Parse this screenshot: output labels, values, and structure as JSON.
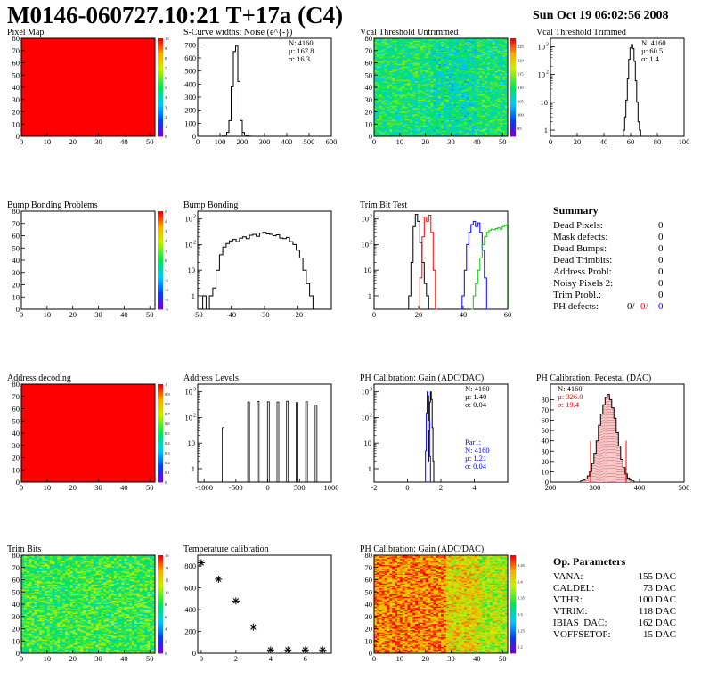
{
  "header": {
    "title": "M0146-060727.10:21 T+17a (C4)",
    "date": "Sun Oct 19 06:02:56 2008"
  },
  "chart_data": [
    {
      "id": "pixel-map",
      "type": "heatmap",
      "title": "Pixel Map",
      "fill": "uniform-red",
      "xlim": [
        0,
        52
      ],
      "ylim": [
        0,
        80
      ],
      "xticks": [
        "0",
        "10",
        "20",
        "30",
        "40",
        "50"
      ],
      "yticks": [
        "0",
        "10",
        "20",
        "30",
        "40",
        "50",
        "60",
        "70",
        "80"
      ],
      "zticks": [
        "0",
        "1",
        "2",
        "3",
        "4",
        "5",
        "6",
        "7",
        "8",
        "9",
        "10"
      ],
      "zlim": [
        0,
        10
      ]
    },
    {
      "id": "noise",
      "type": "line",
      "title": "S-Curve widths: Noise (e^{-})",
      "xlim": [
        0,
        600
      ],
      "ylim": [
        0,
        750
      ],
      "xticks": [
        "0",
        "100",
        "200",
        "300",
        "400",
        "500",
        "600"
      ],
      "yticks": [
        "0",
        "100",
        "200",
        "300",
        "400",
        "500",
        "600",
        "700"
      ],
      "stats": [
        "N: 4160",
        "µ: 167.8",
        "σ: 16.3"
      ],
      "x": [
        115,
        125,
        135,
        145,
        155,
        165,
        175,
        185,
        195,
        205,
        215,
        225,
        235
      ],
      "values": [
        2,
        8,
        30,
        120,
        380,
        650,
        690,
        420,
        120,
        30,
        8,
        3,
        1
      ]
    },
    {
      "id": "vcal-untrimmed",
      "type": "heatmap",
      "title": "Vcal Threshold Untrimmed",
      "fill": "noise-blue-green",
      "xlim": [
        0,
        52
      ],
      "ylim": [
        0,
        80
      ],
      "xticks": [
        "0",
        "10",
        "20",
        "30",
        "40",
        "50"
      ],
      "yticks": [
        "0",
        "10",
        "20",
        "30",
        "40",
        "50",
        "60",
        "70",
        "80"
      ],
      "zticks": [
        "95",
        "100",
        "105",
        "110",
        "115",
        "120",
        "125"
      ],
      "zlim": [
        92,
        128
      ]
    },
    {
      "id": "vcal-trimmed",
      "type": "line",
      "title": "Vcal Threshold Trimmed",
      "log": true,
      "xlim": [
        0,
        100
      ],
      "ylim": [
        0.6,
        2000
      ],
      "xticks": [
        "0",
        "20",
        "40",
        "60",
        "80",
        "100"
      ],
      "yticks": [
        "1",
        "10",
        "10",
        "10"
      ],
      "ysup": [
        "",
        "",
        "2",
        "3"
      ],
      "stats": [
        "N: 4160",
        "µ: 60.5",
        "σ: 1.4"
      ],
      "x": [
        55,
        56,
        57,
        58,
        59,
        60,
        61,
        62,
        63,
        64,
        65,
        66,
        67
      ],
      "values": [
        1,
        3,
        12,
        70,
        350,
        900,
        1200,
        850,
        300,
        60,
        10,
        2,
        1
      ]
    },
    {
      "id": "bump-problems",
      "type": "heatmap",
      "title": "Bump Bonding Problems",
      "fill": "empty",
      "xlim": [
        0,
        52
      ],
      "ylim": [
        0,
        80
      ],
      "xticks": [
        "0",
        "10",
        "20",
        "30",
        "40",
        "50"
      ],
      "yticks": [
        "0",
        "10",
        "20",
        "30",
        "40",
        "50",
        "60",
        "70",
        "80"
      ],
      "zticks": [
        "-5",
        "-4",
        "-3",
        "-2",
        "-1",
        "0",
        "1",
        "2",
        "3",
        "4",
        "5"
      ],
      "zlim": [
        -5,
        5
      ]
    },
    {
      "id": "bump-bonding",
      "type": "line",
      "title": "Bump Bonding",
      "log": true,
      "xlim": [
        -50,
        -10
      ],
      "ylim": [
        0.3,
        2000
      ],
      "xticks": [
        "-50",
        "-40",
        "-30",
        "-20"
      ],
      "yticks": [
        "1",
        "10",
        "10",
        "10"
      ],
      "ysup": [
        "",
        "",
        "2",
        "3"
      ],
      "x": [
        -48,
        -47,
        -46,
        -45,
        -44,
        -43,
        -42,
        -41,
        -40,
        -39,
        -38,
        -37,
        -36,
        -35,
        -34,
        -33,
        -32,
        -31,
        -30,
        -29,
        -28,
        -27,
        -26,
        -25,
        -24,
        -23,
        -22,
        -21,
        -20,
        -19,
        -18,
        -17,
        -16
      ],
      "values": [
        1,
        0,
        1,
        2,
        10,
        40,
        80,
        110,
        140,
        160,
        130,
        180,
        200,
        170,
        230,
        250,
        210,
        280,
        300,
        260,
        250,
        220,
        240,
        180,
        170,
        190,
        130,
        100,
        60,
        30,
        10,
        3,
        1
      ]
    },
    {
      "id": "trim-bit-test",
      "type": "line",
      "title": "Trim Bit Test",
      "log": true,
      "xlim": [
        0,
        60
      ],
      "ylim": [
        0.3,
        2000
      ],
      "xticks": [
        "0",
        "20",
        "40",
        "60"
      ],
      "yticks": [
        "1",
        "10",
        "10",
        "10"
      ],
      "ysup": [
        "",
        "",
        "2",
        "3"
      ],
      "series": [
        {
          "color": "#000000",
          "x": [
            15,
            16,
            17,
            18,
            19,
            20,
            21,
            22,
            23,
            24,
            25
          ],
          "values": [
            0.3,
            1,
            20,
            500,
            1500,
            800,
            120,
            20,
            3,
            1,
            0.3
          ]
        },
        {
          "color": "#ff0000",
          "x": [
            20,
            21,
            22,
            23,
            24,
            25,
            26,
            27,
            28
          ],
          "values": [
            0.3,
            5,
            200,
            1200,
            800,
            1400,
            300,
            10,
            0.3
          ]
        },
        {
          "color": "#0000ff",
          "x": [
            39,
            40,
            41,
            42,
            43,
            44,
            45,
            46,
            47,
            48,
            49,
            50,
            51
          ],
          "values": [
            0.3,
            1,
            10,
            100,
            300,
            600,
            800,
            500,
            700,
            300,
            60,
            5,
            0.3
          ]
        },
        {
          "color": "#00cc00",
          "x": [
            44,
            45,
            46,
            47,
            48,
            49,
            50,
            51,
            52,
            53,
            54,
            55,
            56,
            57,
            58,
            59,
            60
          ],
          "values": [
            0.3,
            1,
            3,
            10,
            30,
            100,
            200,
            300,
            350,
            400,
            380,
            420,
            450,
            400,
            500,
            550,
            600
          ]
        }
      ]
    },
    {
      "id": "address-decoding",
      "type": "heatmap",
      "title": "Address decoding",
      "fill": "uniform-red",
      "xlim": [
        0,
        52
      ],
      "ylim": [
        0,
        80
      ],
      "xticks": [
        "0",
        "10",
        "20",
        "30",
        "40",
        "50"
      ],
      "yticks": [
        "0",
        "10",
        "20",
        "30",
        "40",
        "50",
        "60",
        "70",
        "80"
      ],
      "zticks": [
        "0",
        "0.1",
        "0.2",
        "0.3",
        "0.4",
        "0.5",
        "0.6",
        "0.7",
        "0.8",
        "0.9",
        "1"
      ],
      "zlim": [
        0,
        1
      ]
    },
    {
      "id": "address-levels",
      "type": "bar",
      "title": "Address Levels",
      "log": true,
      "xlim": [
        -1100,
        1000
      ],
      "ylim": [
        0.3,
        2000
      ],
      "xticks": [
        "-1000",
        "-500",
        "0",
        "500",
        "1000"
      ],
      "yticks": [
        "1",
        "10",
        "10",
        "10"
      ],
      "ysup": [
        "",
        "",
        "2",
        "3"
      ],
      "x": [
        -700,
        -300,
        -150,
        10,
        160,
        310,
        460,
        610,
        760
      ],
      "values": [
        40,
        400,
        420,
        410,
        400,
        430,
        380,
        410,
        300
      ]
    },
    {
      "id": "ph-gain",
      "type": "line",
      "title": "PH Calibration: Gain (ADC/DAC)",
      "log": true,
      "xlim": [
        -2,
        6
      ],
      "ylim": [
        0.3,
        2000
      ],
      "xticks": [
        "-2",
        "0",
        "2",
        "4"
      ],
      "yticks": [
        "1",
        "10",
        "10",
        "10"
      ],
      "ysup": [
        "",
        "",
        "2",
        "3"
      ],
      "stats": [
        "N: 4160",
        "µ: 1.40",
        "σ: 0.04"
      ],
      "stats2": [
        "Par1:",
        "N: 4160",
        "µ: 1.21",
        "σ: 0.04"
      ],
      "series": [
        {
          "color": "#000000",
          "x": [
            1.2,
            1.25,
            1.3,
            1.35,
            1.4,
            1.45,
            1.5,
            1.55,
            1.6
          ],
          "values": [
            0.3,
            2,
            30,
            400,
            1000,
            500,
            40,
            2,
            0.3
          ]
        },
        {
          "color": "#0000ff",
          "x": [
            1.05,
            1.1,
            1.15,
            1.2,
            1.25,
            1.3,
            1.35,
            1.4
          ],
          "values": [
            0.3,
            5,
            150,
            1000,
            700,
            80,
            3,
            0.3
          ]
        }
      ]
    },
    {
      "id": "ph-pedestal",
      "type": "line",
      "title": "PH Calibration: Pedestal (DAC)",
      "xlim": [
        200,
        500
      ],
      "ylim": [
        0,
        95
      ],
      "xticks": [
        "200",
        "300",
        "400",
        "500"
      ],
      "yticks": [
        "0",
        "10",
        "20",
        "30",
        "40",
        "50",
        "60",
        "70",
        "80"
      ],
      "stats": [
        "N: 4160",
        "µ: 326.0",
        "σ: 19.4"
      ],
      "fit_lines": [
        290,
        370
      ],
      "x": [
        270,
        275,
        280,
        285,
        290,
        295,
        300,
        305,
        310,
        315,
        320,
        325,
        330,
        335,
        340,
        345,
        350,
        355,
        360,
        365,
        370,
        375,
        380,
        385
      ],
      "values": [
        1,
        2,
        3,
        6,
        10,
        18,
        28,
        40,
        55,
        66,
        75,
        82,
        85,
        80,
        72,
        62,
        48,
        35,
        22,
        14,
        8,
        4,
        2,
        1
      ]
    },
    {
      "id": "trim-bits",
      "type": "heatmap",
      "title": "Trim Bits",
      "fill": "noise-green-yellow",
      "xlim": [
        0,
        52
      ],
      "ylim": [
        0,
        80
      ],
      "xticks": [
        "0",
        "10",
        "20",
        "30",
        "40",
        "50"
      ],
      "yticks": [
        "0",
        "10",
        "20",
        "30",
        "40",
        "50",
        "60",
        "70",
        "80"
      ],
      "zticks": [
        "0",
        "2",
        "4",
        "6",
        "8",
        "10",
        "12",
        "14",
        "16"
      ],
      "zlim": [
        0,
        16
      ]
    },
    {
      "id": "temperature",
      "type": "scatter",
      "title": "Temperature calibration",
      "xlim": [
        -0.2,
        7.5
      ],
      "ylim": [
        0,
        900
      ],
      "xticks": [
        "0",
        "2",
        "4",
        "6"
      ],
      "yticks": [
        "0",
        "200",
        "400",
        "600",
        "800"
      ],
      "x": [
        0,
        1,
        2,
        3,
        4,
        5,
        6,
        7
      ],
      "values": [
        830,
        680,
        480,
        240,
        30,
        30,
        30,
        30
      ]
    },
    {
      "id": "ph-gain-map",
      "type": "heatmap",
      "title": "PH Calibration: Gain (ADC/DAC)",
      "fill": "noise-red-yellow",
      "xlim": [
        0,
        52
      ],
      "ylim": [
        0,
        80
      ],
      "xticks": [
        "0",
        "10",
        "20",
        "30",
        "40",
        "50"
      ],
      "yticks": [
        "0",
        "10",
        "20",
        "30",
        "40",
        "50",
        "60",
        "70",
        "80"
      ],
      "zticks": [
        "1.2",
        "1.25",
        "1.3",
        "1.35",
        "1.4",
        "1.45"
      ],
      "zlim": [
        1.18,
        1.48
      ]
    }
  ],
  "summary": {
    "title": "Summary",
    "rows": [
      {
        "label": "Dead Pixels:",
        "value": "0"
      },
      {
        "label": "Mask defects:",
        "value": "0"
      },
      {
        "label": "Dead Bumps:",
        "value": "0"
      },
      {
        "label": "Dead Trimbits:",
        "value": "0"
      },
      {
        "label": "Address Probl:",
        "value": "0"
      },
      {
        "label": "Noisy Pixels 2:",
        "value": "0"
      },
      {
        "label": "Trim Probl.:",
        "value": "0"
      }
    ],
    "ph": {
      "label": "PH defects:",
      "v1": "0/",
      "v2": "0/",
      "v3": "0"
    }
  },
  "op_params": {
    "title": "Op. Parameters",
    "rows": [
      {
        "label": "VANA:",
        "value": "155 DAC"
      },
      {
        "label": "CALDEL:",
        "value": "73 DAC"
      },
      {
        "label": "VTHR:",
        "value": "100 DAC"
      },
      {
        "label": "VTRIM:",
        "value": "118 DAC"
      },
      {
        "label": "IBIAS_DAC:",
        "value": "162 DAC"
      },
      {
        "label": "VOFFSETOP:",
        "value": "15 DAC"
      }
    ]
  }
}
